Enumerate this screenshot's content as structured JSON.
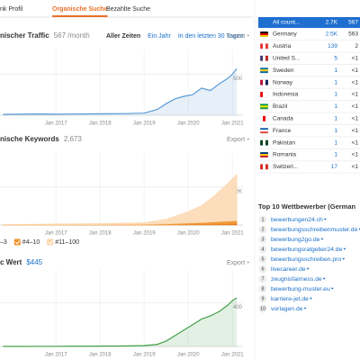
{
  "tabs": [
    "nk Profil",
    "Organische Suche",
    "Bezahlte Suche"
  ],
  "chart_data": [
    {
      "type": "line",
      "title": "nischer Traffic",
      "subtitle": "567 /month",
      "ranges": [
        "Aller Zeiten",
        "Ein Jahr",
        "In den letzten 30 Tagen"
      ],
      "export": "Export",
      "x": [
        2015.8,
        2016.2,
        2016.6,
        2017.0,
        2017.4,
        2017.8,
        2018.2,
        2018.6,
        2019.0,
        2019.3,
        2019.5,
        2019.7,
        2019.9,
        2020.1,
        2020.3,
        2020.5,
        2020.7,
        2020.9,
        2021.0,
        2021.1
      ],
      "series": [
        {
          "color": "#5b9bd5",
          "values": [
            10,
            12,
            15,
            12,
            14,
            16,
            18,
            20,
            25,
            70,
            140,
            200,
            230,
            250,
            330,
            300,
            380,
            450,
            500,
            567
          ]
        }
      ],
      "xlim": [
        2015.73,
        2021.24
      ],
      "xticks": [
        {
          "value": 2017,
          "label": "Jan 2017"
        },
        {
          "value": 2018,
          "label": "Jan 2018"
        },
        {
          "value": 2019,
          "label": "Jan 2019"
        },
        {
          "value": 2020,
          "label": "Jan 2020"
        },
        {
          "value": 2021,
          "label": "Jan 2021"
        }
      ],
      "ylim": [
        0,
        800
      ],
      "yticks": [
        500
      ],
      "grid": true
    },
    {
      "type": "area",
      "stacked": true,
      "title": "nische Keywords",
      "subtitle": "2,673",
      "export": "Export",
      "x": [
        2015.8,
        2016.5,
        2017.0,
        2017.5,
        2018.0,
        2018.5,
        2019.0,
        2019.5,
        2020.0,
        2020.3,
        2020.6,
        2020.9,
        2021.1
      ],
      "series": [
        {
          "name": "–3",
          "color": "#d86c0c",
          "values": [
            2,
            2,
            3,
            3,
            4,
            5,
            5,
            10,
            20,
            25,
            30,
            38,
            43
          ]
        },
        {
          "name": "#4–10",
          "color": "#f0922b",
          "values": [
            5,
            5,
            8,
            10,
            12,
            15,
            20,
            40,
            80,
            100,
            130,
            160,
            180
          ]
        },
        {
          "name": "#11–100",
          "color": "#fbd3a6",
          "values": [
            20,
            30,
            40,
            50,
            60,
            80,
            100,
            250,
            600,
            900,
            1400,
            2000,
            2450
          ]
        }
      ],
      "xlim": [
        2015.73,
        2021.24
      ],
      "xticks": [
        {
          "value": 2017,
          "label": "Jan 2017"
        },
        {
          "value": 2018,
          "label": "Jan 2018"
        },
        {
          "value": 2019,
          "label": "Jan 2019"
        },
        {
          "value": 2020,
          "label": "Jan 2020"
        },
        {
          "value": 2021,
          "label": "Jan 2021"
        }
      ],
      "ylim": [
        0,
        3800
      ],
      "yticks": [
        {
          "value": 2000,
          "label": "2K"
        }
      ],
      "grid": true
    },
    {
      "type": "line",
      "title": "c Wert",
      "subtitle": "$445",
      "export": "Export",
      "x": [
        2015.8,
        2016.2,
        2016.6,
        2017.0,
        2017.4,
        2017.8,
        2018.2,
        2018.6,
        2019.0,
        2019.3,
        2019.5,
        2019.7,
        2019.9,
        2020.1,
        2020.3,
        2020.5,
        2020.7,
        2020.9,
        2021.0,
        2021.1
      ],
      "series": [
        {
          "color": "#43a047",
          "values": [
            1,
            1,
            2,
            2,
            3,
            3,
            4,
            5,
            8,
            20,
            50,
            100,
            150,
            200,
            250,
            280,
            320,
            380,
            420,
            445
          ]
        }
      ],
      "xlim": [
        2015.73,
        2021.24
      ],
      "xticks": [
        {
          "value": 2017,
          "label": "Jan 2017"
        },
        {
          "value": 2018,
          "label": "Jan 2018"
        },
        {
          "value": 2019,
          "label": "Jan 2019"
        },
        {
          "value": 2020,
          "label": "Jan 2020"
        },
        {
          "value": 2021,
          "label": "Jan 2021"
        }
      ],
      "ylim": [
        0,
        700
      ],
      "yticks": [
        400
      ],
      "grid": true
    }
  ],
  "countries": {
    "header": [
      "All count...",
      "2.7K",
      "567"
    ],
    "rows": [
      [
        "Germany",
        "2.5K",
        "563"
      ],
      [
        "Austria",
        "139",
        "2"
      ],
      [
        "United S...",
        "5",
        "<1"
      ],
      [
        "Sweden",
        "1",
        "<1"
      ],
      [
        "Norway",
        "1",
        "<1"
      ],
      [
        "Indonesia",
        "1",
        "<1"
      ],
      [
        "Brazil",
        "1",
        "<1"
      ],
      [
        "Canada",
        "1",
        "<1"
      ],
      [
        "France",
        "1",
        "<1"
      ],
      [
        "Pakistan",
        "1",
        "<1"
      ],
      [
        "Romania",
        "1",
        "<1"
      ],
      [
        "Switzerl...",
        "17",
        "<1"
      ]
    ]
  },
  "competitors": {
    "title": "Top 10 Wettbewerber (German",
    "items": [
      {
        "rank": 1,
        "domain": "bewerbungen24.ch"
      },
      {
        "rank": 2,
        "domain": "bewerbungsschreibenmuster.de"
      },
      {
        "rank": 3,
        "domain": "bewerbung2go.de"
      },
      {
        "rank": 4,
        "domain": "bewerbungsratgeber24.de"
      },
      {
        "rank": 5,
        "domain": "bewerbungsschreiben.pro"
      },
      {
        "rank": 6,
        "domain": "livecareer.de"
      },
      {
        "rank": 7,
        "domain": "zeugnisfairness.de"
      },
      {
        "rank": 8,
        "domain": "bewerbung-muster.eu"
      },
      {
        "rank": 9,
        "domain": "karriere-jet.de"
      },
      {
        "rank": 10,
        "domain": "vorlagen.de"
      }
    ]
  }
}
